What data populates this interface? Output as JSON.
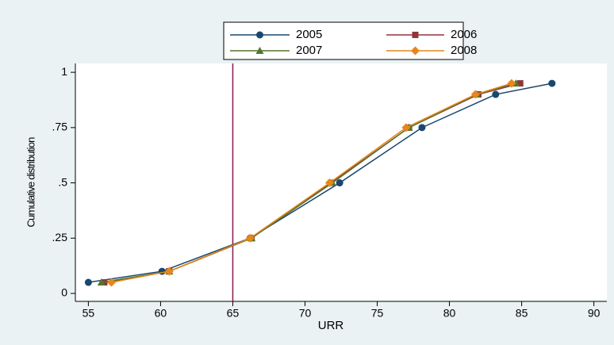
{
  "chart_data": {
    "type": "line",
    "x_label": "URR",
    "y_label": "Cumulative distribution",
    "xlim": [
      54.1,
      90.9
    ],
    "xticks": [
      55,
      60,
      65,
      70,
      75,
      80,
      85,
      90
    ],
    "ylim": [
      -0.036,
      1.04
    ],
    "yticks": [
      {
        "value": 0,
        "label": "0"
      },
      {
        "value": 0.25,
        "label": ".25"
      },
      {
        "value": 0.5,
        "label": ".5"
      },
      {
        "value": 0.75,
        "label": ".75"
      },
      {
        "value": 1,
        "label": "1"
      }
    ],
    "grid": false,
    "reference_line": {
      "x": 65,
      "color": "#8b1a4b"
    },
    "legend_position": "top",
    "series": [
      {
        "name": "2005",
        "color": "#1a476f",
        "marker": "circle",
        "x": [
          55.0,
          60.1,
          66.2,
          72.4,
          78.1,
          83.2,
          87.1
        ],
        "values": [
          0.05,
          0.1,
          0.25,
          0.5,
          0.75,
          0.9,
          0.95
        ]
      },
      {
        "name": "2006",
        "color": "#90353b",
        "marker": "square",
        "x": [
          56.1,
          60.6,
          66.3,
          71.8,
          77.2,
          82.0,
          84.9
        ],
        "values": [
          0.05,
          0.1,
          0.25,
          0.5,
          0.75,
          0.9,
          0.95
        ]
      },
      {
        "name": "2007",
        "color": "#55752f",
        "marker": "triangle",
        "x": [
          55.9,
          60.6,
          66.3,
          71.9,
          77.2,
          81.9,
          84.6
        ],
        "values": [
          0.05,
          0.1,
          0.25,
          0.5,
          0.75,
          0.9,
          0.95
        ]
      },
      {
        "name": "2008",
        "color": "#e8861a",
        "marker": "diamond",
        "x": [
          56.6,
          60.6,
          66.2,
          71.7,
          77.0,
          81.8,
          84.3
        ],
        "values": [
          0.05,
          0.1,
          0.25,
          0.5,
          0.75,
          0.9,
          0.95
        ]
      }
    ]
  }
}
